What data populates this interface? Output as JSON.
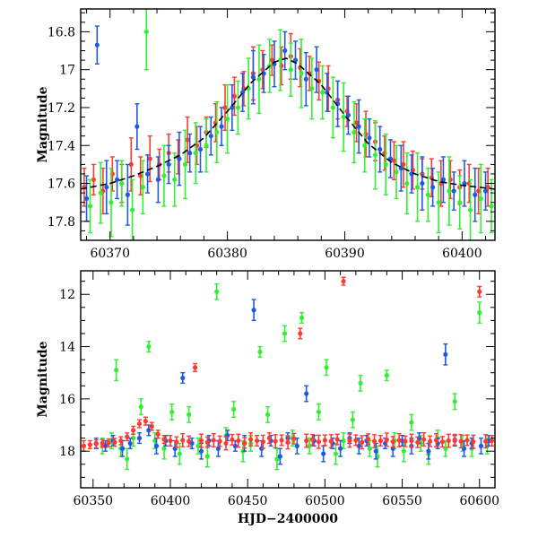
{
  "chart_data": [
    {
      "id": "top",
      "type": "scatter",
      "title": "",
      "xlabel": "",
      "ylabel": "Magnitude",
      "xlim": [
        60367.5,
        60402.8
      ],
      "ylim": [
        17.9,
        16.68
      ],
      "y_inverted": true,
      "xticks": [
        60370,
        60380,
        60390,
        60400
      ],
      "yticks": [
        16.8,
        17,
        17.2,
        17.4,
        17.6,
        17.8
      ],
      "grid": false,
      "legend": "none",
      "model_curve": {
        "color": "#000000",
        "style": "dashed",
        "x": [
          60367.5,
          60370,
          60372,
          60374,
          60376,
          60378,
          60380,
          60382,
          60384,
          60385,
          60386,
          60388,
          60390,
          60392,
          60394,
          60396,
          60398,
          60400,
          60402.8
        ],
        "y": [
          17.63,
          17.6,
          17.56,
          17.51,
          17.45,
          17.36,
          17.22,
          17.07,
          16.96,
          16.94,
          16.97,
          17.08,
          17.24,
          17.39,
          17.49,
          17.55,
          17.59,
          17.61,
          17.63
        ]
      },
      "series": [
        {
          "color": "#ff3b30",
          "x": [
            60367.8,
            60368.6,
            60369.4,
            60370.2,
            60371.0,
            60371.8,
            60372.6,
            60373.4,
            60374.2,
            60375.0,
            60375.8,
            60376.6,
            60377.4,
            60378.2,
            60379.0,
            60379.8,
            60380.6,
            60381.4,
            60382.2,
            60383.0,
            60383.8,
            60384.6,
            60385.4,
            60386.2,
            60387.0,
            60387.8,
            60388.6,
            60389.4,
            60390.2,
            60391.0,
            60391.8,
            60392.6,
            60393.4,
            60394.2,
            60395.0,
            60395.8,
            60396.6,
            60397.4,
            60398.2,
            60399.0,
            60399.8,
            60400.6,
            60401.4,
            60402.2
          ],
          "y": [
            17.62,
            17.58,
            17.64,
            17.55,
            17.6,
            17.5,
            17.56,
            17.47,
            17.5,
            17.44,
            17.46,
            17.37,
            17.4,
            17.33,
            17.28,
            17.2,
            17.14,
            17.1,
            17.02,
            17.0,
            16.95,
            16.98,
            16.93,
            16.99,
            17.02,
            17.06,
            17.1,
            17.16,
            17.22,
            17.28,
            17.34,
            17.38,
            17.44,
            17.48,
            17.5,
            17.53,
            17.55,
            17.57,
            17.6,
            17.58,
            17.62,
            17.6,
            17.64,
            17.62
          ],
          "yerr": [
            0.1,
            0.08,
            0.12,
            0.09,
            0.1,
            0.14,
            0.1,
            0.12,
            0.08,
            0.1,
            0.09,
            0.12,
            0.1,
            0.08,
            0.1,
            0.12,
            0.1,
            0.09,
            0.14,
            0.1,
            0.08,
            0.1,
            0.12,
            0.1,
            0.09,
            0.1,
            0.12,
            0.1,
            0.08,
            0.1,
            0.12,
            0.1,
            0.09,
            0.1,
            0.12,
            0.1,
            0.08,
            0.1,
            0.12,
            0.1,
            0.09,
            0.1,
            0.12,
            0.1
          ]
        },
        {
          "color": "#1e5ae6",
          "x": [
            60368.0,
            60368.9,
            60369.7,
            60370.6,
            60371.5,
            60372.3,
            60373.2,
            60374.1,
            60375.0,
            60375.9,
            60376.8,
            60377.7,
            60378.6,
            60379.5,
            60380.4,
            60381.3,
            60382.2,
            60383.1,
            60384.0,
            60384.9,
            60385.8,
            60386.7,
            60387.6,
            60388.5,
            60389.4,
            60390.3,
            60391.2,
            60392.1,
            60393.0,
            60393.9,
            60394.8,
            60395.7,
            60396.6,
            60397.5,
            60398.4,
            60399.3,
            60400.2,
            60401.1,
            60402.0
          ],
          "y": [
            17.68,
            16.87,
            17.62,
            17.58,
            17.66,
            17.3,
            17.55,
            17.58,
            17.5,
            17.47,
            17.44,
            17.42,
            17.35,
            17.3,
            17.2,
            17.12,
            17.04,
            17.02,
            16.97,
            16.9,
            16.95,
            17.05,
            17.0,
            17.12,
            17.18,
            17.24,
            17.3,
            17.36,
            17.42,
            17.47,
            17.52,
            17.55,
            17.6,
            17.62,
            17.58,
            17.64,
            17.6,
            17.66,
            17.64
          ],
          "yerr": [
            0.12,
            0.1,
            0.14,
            0.1,
            0.16,
            0.12,
            0.1,
            0.12,
            0.1,
            0.14,
            0.1,
            0.12,
            0.1,
            0.1,
            0.12,
            0.1,
            0.14,
            0.1,
            0.12,
            0.1,
            0.1,
            0.14,
            0.12,
            0.1,
            0.12,
            0.1,
            0.14,
            0.1,
            0.12,
            0.1,
            0.12,
            0.1,
            0.14,
            0.1,
            0.12,
            0.1,
            0.12,
            0.14,
            0.1
          ]
        },
        {
          "color": "#33ee33",
          "x": [
            60368.3,
            60369.2,
            60370.1,
            60371.0,
            60371.9,
            60372.8,
            60373.1,
            60374.6,
            60375.5,
            60376.4,
            60377.3,
            60378.2,
            60379.1,
            60380.0,
            60380.9,
            60381.8,
            60382.7,
            60383.6,
            60384.5,
            60385.4,
            60386.3,
            60387.2,
            60388.1,
            60389.0,
            60389.9,
            60390.8,
            60391.7,
            60392.6,
            60393.5,
            60394.4,
            60395.3,
            60396.2,
            60397.1,
            60398.0,
            60398.9,
            60399.8,
            60400.7,
            60401.6,
            60402.5
          ],
          "y": [
            17.72,
            17.65,
            17.7,
            17.6,
            17.74,
            17.62,
            16.8,
            17.56,
            17.58,
            17.5,
            17.44,
            17.4,
            17.33,
            17.26,
            17.2,
            17.1,
            17.05,
            16.98,
            16.95,
            17.0,
            17.02,
            17.1,
            17.12,
            17.2,
            17.25,
            17.33,
            17.4,
            17.45,
            17.5,
            17.54,
            17.6,
            17.62,
            17.66,
            17.7,
            17.64,
            17.7,
            17.74,
            17.68,
            17.72
          ],
          "yerr": [
            0.14,
            0.16,
            0.18,
            0.12,
            0.16,
            0.14,
            0.2,
            0.16,
            0.14,
            0.18,
            0.16,
            0.14,
            0.16,
            0.18,
            0.14,
            0.16,
            0.18,
            0.14,
            0.16,
            0.14,
            0.18,
            0.16,
            0.14,
            0.16,
            0.18,
            0.16,
            0.14,
            0.18,
            0.16,
            0.14,
            0.16,
            0.18,
            0.14,
            0.16,
            0.18,
            0.14,
            0.16,
            0.18,
            0.14
          ]
        }
      ]
    },
    {
      "id": "bottom",
      "type": "scatter",
      "title": "",
      "xlabel": "HJD−2400000",
      "ylabel": "Magnitude",
      "xlim": [
        60342,
        60610
      ],
      "ylim": [
        19.4,
        11.1
      ],
      "y_inverted": true,
      "xticks": [
        60350,
        60400,
        60450,
        60500,
        60550,
        60600
      ],
      "yticks": [
        12,
        14,
        16,
        18
      ],
      "grid": false,
      "legend": "none",
      "series": [
        {
          "color": "#33ee33",
          "x": [
            60356,
            60362,
            60365,
            60368,
            60372,
            60376,
            60381,
            60386,
            60390,
            60396,
            60401,
            60406,
            60412,
            60418,
            60424,
            60430,
            60436,
            60441,
            60447,
            60452,
            60458,
            60463,
            60469,
            60474,
            60479,
            60485,
            60490,
            60496,
            60501,
            60507,
            60512,
            60518,
            60523,
            60529,
            60534,
            60540,
            60545,
            60551,
            60556,
            60562,
            60567,
            60573,
            60578,
            60584,
            60589,
            60595,
            60600,
            60605
          ],
          "y": [
            17.8,
            17.6,
            14.9,
            17.9,
            18.3,
            17.5,
            16.3,
            14.0,
            17.6,
            17.9,
            16.5,
            18.1,
            16.6,
            17.8,
            18.2,
            11.9,
            17.4,
            16.4,
            18.0,
            17.7,
            14.2,
            16.6,
            18.3,
            13.5,
            17.5,
            12.9,
            17.8,
            16.5,
            14.8,
            18.1,
            17.6,
            16.8,
            15.4,
            17.9,
            18.2,
            15.1,
            17.6,
            18.0,
            16.9,
            17.7,
            18.1,
            17.5,
            17.9,
            16.1,
            17.7,
            17.9,
            12.7,
            17.8
          ],
          "yerr": [
            0.3,
            0.3,
            0.4,
            0.3,
            0.4,
            0.3,
            0.3,
            0.2,
            0.3,
            0.4,
            0.3,
            0.4,
            0.3,
            0.3,
            0.4,
            0.3,
            0.3,
            0.3,
            0.4,
            0.3,
            0.2,
            0.3,
            0.4,
            0.3,
            0.3,
            0.2,
            0.3,
            0.3,
            0.3,
            0.4,
            0.3,
            0.3,
            0.3,
            0.3,
            0.4,
            0.2,
            0.3,
            0.4,
            0.3,
            0.3,
            0.4,
            0.3,
            0.3,
            0.3,
            0.3,
            0.3,
            0.4,
            0.3
          ]
        },
        {
          "color": "#1e5ae6",
          "x": [
            60352,
            60358,
            60363,
            60369,
            60374,
            60380,
            60386,
            60391,
            60397,
            60403,
            60408,
            60414,
            60420,
            60425,
            60431,
            60437,
            60442,
            60448,
            60454,
            60459,
            60465,
            60471,
            60476,
            60482,
            60488,
            60493,
            60499,
            60505,
            60510,
            60516,
            60522,
            60527,
            60533,
            60539,
            60544,
            60550,
            60556,
            60561,
            60567,
            60573,
            60578,
            60584,
            60590,
            60595,
            60601,
            60606
          ],
          "y": [
            17.7,
            17.8,
            17.6,
            17.9,
            17.7,
            17.5,
            17.2,
            17.8,
            17.6,
            17.9,
            15.2,
            17.7,
            18.0,
            17.6,
            17.9,
            17.4,
            17.8,
            17.7,
            12.6,
            17.9,
            17.6,
            18.2,
            17.5,
            17.8,
            15.8,
            17.6,
            18.1,
            17.7,
            17.9,
            17.5,
            17.8,
            17.6,
            18.0,
            17.7,
            17.9,
            17.6,
            17.8,
            17.5,
            18.0,
            17.7,
            14.3,
            17.6,
            17.9,
            17.7,
            17.8,
            17.6
          ],
          "yerr": [
            0.2,
            0.2,
            0.2,
            0.3,
            0.2,
            0.2,
            0.2,
            0.3,
            0.2,
            0.3,
            0.2,
            0.2,
            0.3,
            0.2,
            0.3,
            0.2,
            0.2,
            0.3,
            0.4,
            0.3,
            0.2,
            0.3,
            0.2,
            0.3,
            0.3,
            0.2,
            0.3,
            0.2,
            0.3,
            0.2,
            0.3,
            0.2,
            0.3,
            0.2,
            0.3,
            0.2,
            0.3,
            0.2,
            0.3,
            0.2,
            0.4,
            0.2,
            0.3,
            0.2,
            0.3,
            0.2
          ]
        },
        {
          "color": "#ff3b30",
          "x": [
            60344,
            60348,
            60352,
            60356,
            60360,
            60364,
            60368,
            60372,
            60376,
            60380,
            60384,
            60388,
            60392,
            60396,
            60400,
            60404,
            60408,
            60412,
            60416,
            60420,
            60424,
            60428,
            60432,
            60436,
            60440,
            60444,
            60448,
            60452,
            60456,
            60460,
            60464,
            60468,
            60472,
            60476,
            60480,
            60484,
            60488,
            60492,
            60496,
            60500,
            60504,
            60508,
            60512,
            60516,
            60520,
            60524,
            60528,
            60532,
            60536,
            60540,
            60544,
            60548,
            60552,
            60556,
            60560,
            60564,
            60568,
            60572,
            60576,
            60580,
            60584,
            60588,
            60592,
            60596,
            60600,
            60604,
            60608
          ],
          "y": [
            17.8,
            17.75,
            17.72,
            17.7,
            17.68,
            17.66,
            17.6,
            17.45,
            17.2,
            16.95,
            16.85,
            17.05,
            17.35,
            17.55,
            17.6,
            17.65,
            17.58,
            17.62,
            14.8,
            17.6,
            17.66,
            17.58,
            17.62,
            17.7,
            17.56,
            17.6,
            17.68,
            17.55,
            17.6,
            17.64,
            17.5,
            17.62,
            17.58,
            17.66,
            17.52,
            13.5,
            17.6,
            17.56,
            17.64,
            17.58,
            17.62,
            17.55,
            11.5,
            17.6,
            17.58,
            17.66,
            17.54,
            17.62,
            17.6,
            17.56,
            17.64,
            17.58,
            17.62,
            17.6,
            17.66,
            17.55,
            17.62,
            17.58,
            17.64,
            17.6,
            17.56,
            17.62,
            17.58,
            17.64,
            11.9,
            17.62,
            17.6
          ],
          "yerr": [
            0.2,
            0.15,
            0.15,
            0.15,
            0.15,
            0.15,
            0.15,
            0.15,
            0.15,
            0.15,
            0.15,
            0.15,
            0.15,
            0.15,
            0.2,
            0.2,
            0.25,
            0.2,
            0.15,
            0.25,
            0.2,
            0.25,
            0.2,
            0.25,
            0.2,
            0.25,
            0.2,
            0.25,
            0.2,
            0.25,
            0.2,
            0.25,
            0.2,
            0.25,
            0.2,
            0.2,
            0.25,
            0.2,
            0.25,
            0.2,
            0.25,
            0.2,
            0.15,
            0.25,
            0.2,
            0.25,
            0.2,
            0.25,
            0.2,
            0.25,
            0.2,
            0.25,
            0.2,
            0.25,
            0.2,
            0.25,
            0.2,
            0.25,
            0.2,
            0.25,
            0.2,
            0.25,
            0.2,
            0.25,
            0.2,
            0.25,
            0.2
          ]
        }
      ]
    }
  ]
}
